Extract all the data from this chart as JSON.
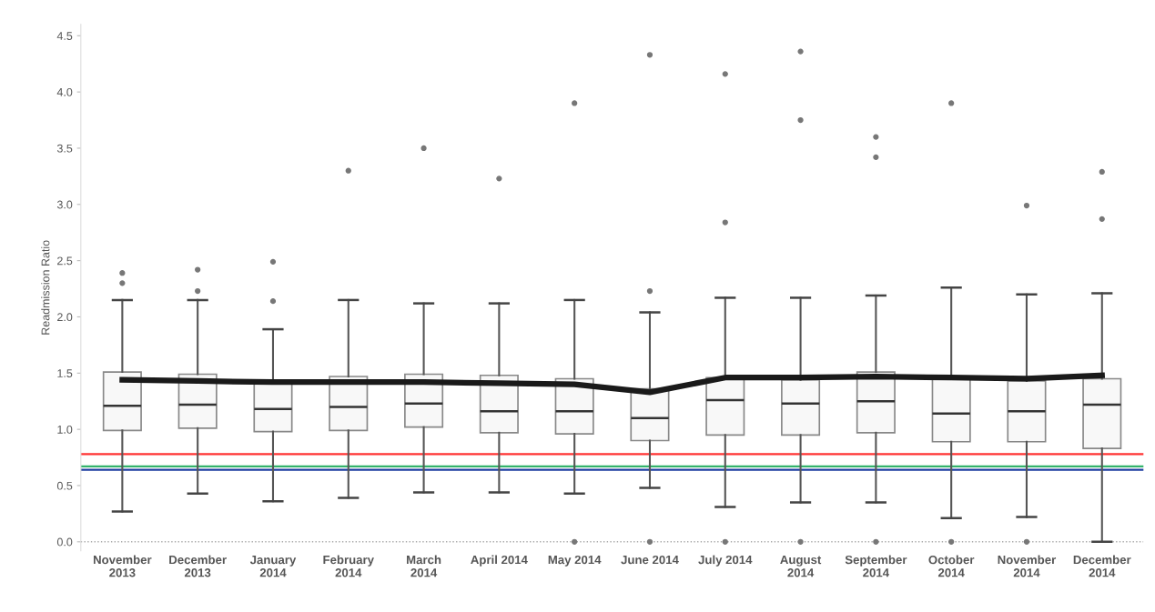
{
  "chart_data": {
    "type": "box",
    "ylabel": "Readmission Ratio",
    "categories": [
      "November\n2013",
      "December\n2013",
      "January\n2014",
      "February\n2014",
      "March\n2014",
      "April 2014",
      "May 2014",
      "June 2014",
      "July 2014",
      "August\n2014",
      "September\n2014",
      "October\n2014",
      "November\n2014",
      "December\n2014"
    ],
    "boxes": [
      {
        "low": 0.27,
        "q1": 0.99,
        "median": 1.21,
        "q3": 1.51,
        "high": 2.15,
        "outliers": [
          2.39,
          2.3
        ]
      },
      {
        "low": 0.43,
        "q1": 1.01,
        "median": 1.22,
        "q3": 1.49,
        "high": 2.15,
        "outliers": [
          2.42,
          2.23
        ]
      },
      {
        "low": 0.36,
        "q1": 0.98,
        "median": 1.18,
        "q3": 1.41,
        "high": 1.89,
        "outliers": [
          2.49,
          2.14
        ]
      },
      {
        "low": 0.39,
        "q1": 0.99,
        "median": 1.2,
        "q3": 1.47,
        "high": 2.15,
        "outliers": [
          3.3
        ]
      },
      {
        "low": 0.44,
        "q1": 1.02,
        "median": 1.23,
        "q3": 1.49,
        "high": 2.12,
        "outliers": [
          3.5
        ]
      },
      {
        "low": 0.44,
        "q1": 0.97,
        "median": 1.16,
        "q3": 1.48,
        "high": 2.12,
        "outliers": [
          3.23
        ]
      },
      {
        "low": 0.43,
        "q1": 0.96,
        "median": 1.16,
        "q3": 1.45,
        "high": 2.15,
        "outliers": [
          3.9,
          0.0
        ]
      },
      {
        "low": 0.48,
        "q1": 0.9,
        "median": 1.1,
        "q3": 1.36,
        "high": 2.04,
        "outliers": [
          4.33,
          2.23,
          0.0
        ]
      },
      {
        "low": 0.31,
        "q1": 0.95,
        "median": 1.26,
        "q3": 1.46,
        "high": 2.17,
        "outliers": [
          4.16,
          2.84,
          0.0
        ]
      },
      {
        "low": 0.35,
        "q1": 0.95,
        "median": 1.23,
        "q3": 1.44,
        "high": 2.17,
        "outliers": [
          4.36,
          3.75,
          0.0
        ]
      },
      {
        "low": 0.35,
        "q1": 0.97,
        "median": 1.25,
        "q3": 1.51,
        "high": 2.19,
        "outliers": [
          3.6,
          3.42,
          0.0
        ]
      },
      {
        "low": 0.21,
        "q1": 0.89,
        "median": 1.14,
        "q3": 1.45,
        "high": 2.26,
        "outliers": [
          3.9,
          0.0
        ]
      },
      {
        "low": 0.22,
        "q1": 0.89,
        "median": 1.16,
        "q3": 1.43,
        "high": 2.2,
        "outliers": [
          2.99,
          0.0
        ]
      },
      {
        "low": 0.0,
        "q1": 0.83,
        "median": 1.22,
        "q3": 1.45,
        "high": 2.21,
        "outliers": [
          3.29,
          2.87
        ]
      }
    ],
    "series": [
      {
        "type": "line",
        "color": "#1a1a1a",
        "values": [
          1.44,
          1.43,
          1.42,
          1.42,
          1.42,
          1.41,
          1.4,
          1.33,
          1.46,
          1.46,
          1.47,
          1.46,
          1.45,
          1.48
        ]
      }
    ],
    "ref_lines": [
      {
        "axis": "y",
        "value": 0.78,
        "color": "#ff3333"
      },
      {
        "axis": "y",
        "value": 0.67,
        "color": "#33b36b"
      },
      {
        "axis": "y",
        "value": 0.64,
        "color": "#1f3fa0"
      },
      {
        "axis": "y",
        "value": 0.0,
        "color": "#aaaaaa",
        "line_style": "dotted"
      }
    ],
    "ylim": [
      -0.08,
      4.6
    ],
    "yticks": [
      {
        "value": 0,
        "label": "0.0"
      },
      {
        "value": 0.5,
        "label": "0.5"
      },
      {
        "value": 1,
        "label": "1.0"
      },
      {
        "value": 1.5,
        "label": "1.5"
      },
      {
        "value": 2,
        "label": "2.0"
      },
      {
        "value": 2.5,
        "label": "2.5"
      },
      {
        "value": 3,
        "label": "3.0"
      },
      {
        "value": 3.5,
        "label": "3.5"
      },
      {
        "value": 4,
        "label": "4.0"
      },
      {
        "value": 4.5,
        "label": "4.5"
      }
    ],
    "grid": false
  }
}
